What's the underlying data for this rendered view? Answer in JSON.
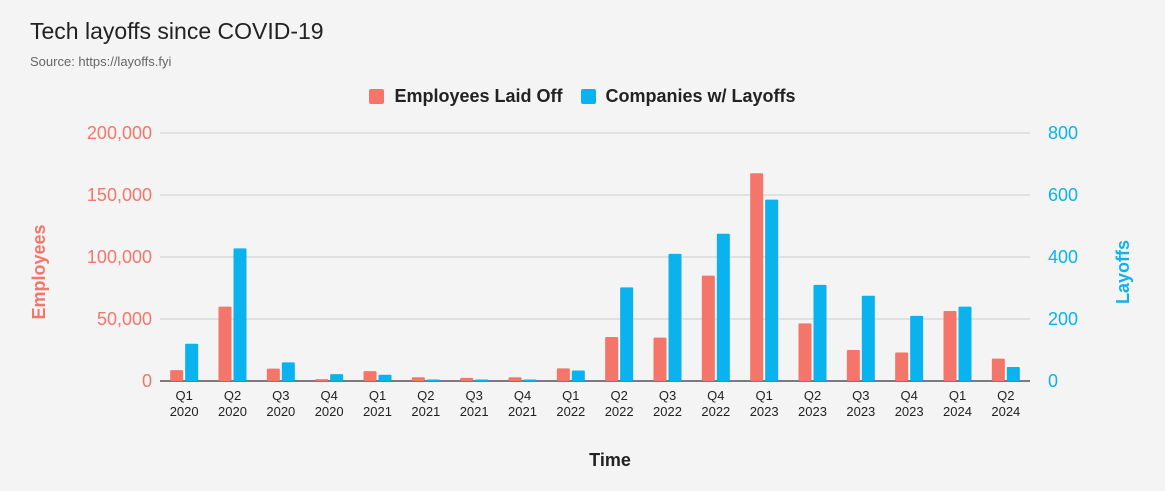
{
  "header": {
    "title": "Tech layoffs since COVID-19",
    "subtitle": "Source: https://layoffs.fyi"
  },
  "colors": {
    "employees": "#f4766a",
    "companies": "#0ab2ee",
    "grid": "#cccccc",
    "axis_text": "#222222"
  },
  "chart_data": {
    "type": "bar",
    "title": "Tech layoffs since COVID-19",
    "subtitle": "Source: https://layoffs.fyi",
    "xlabel": "Time",
    "ylabel_left": "Employees",
    "ylabel_right": "Layoffs",
    "categories": [
      [
        "Q1",
        "2020"
      ],
      [
        "Q2",
        "2020"
      ],
      [
        "Q3",
        "2020"
      ],
      [
        "Q4",
        "2020"
      ],
      [
        "Q1",
        "2021"
      ],
      [
        "Q2",
        "2021"
      ],
      [
        "Q3",
        "2021"
      ],
      [
        "Q4",
        "2021"
      ],
      [
        "Q1",
        "2022"
      ],
      [
        "Q2",
        "2022"
      ],
      [
        "Q3",
        "2022"
      ],
      [
        "Q4",
        "2022"
      ],
      [
        "Q1",
        "2023"
      ],
      [
        "Q2",
        "2023"
      ],
      [
        "Q3",
        "2023"
      ],
      [
        "Q4",
        "2023"
      ],
      [
        "Q1",
        "2024"
      ],
      [
        "Q2",
        "2024"
      ]
    ],
    "left_axis": {
      "min": 0,
      "max": 200000,
      "ticks": [
        "0",
        "50,000",
        "100,000",
        "150,000",
        "200,000"
      ],
      "tick_values": [
        0,
        50000,
        100000,
        150000,
        200000
      ]
    },
    "right_axis": {
      "min": 0,
      "max": 800,
      "ticks": [
        "0",
        "200",
        "400",
        "600",
        "800"
      ],
      "tick_values": [
        0,
        200,
        400,
        600,
        800
      ]
    },
    "grid": true,
    "legend_position": "top-center",
    "series": [
      {
        "name": "Employees Laid Off",
        "axis": "left",
        "values": [
          8800,
          60000,
          10000,
          1500,
          8000,
          3000,
          2500,
          3000,
          10200,
          35500,
          35000,
          85000,
          167500,
          46500,
          25000,
          23000,
          56500,
          18000
        ]
      },
      {
        "name": "Companies w/ Layoffs",
        "axis": "right",
        "values": [
          120,
          428,
          60,
          22,
          20,
          5,
          5,
          5,
          34,
          302,
          410,
          475,
          585,
          310,
          275,
          210,
          240,
          45
        ]
      }
    ]
  }
}
